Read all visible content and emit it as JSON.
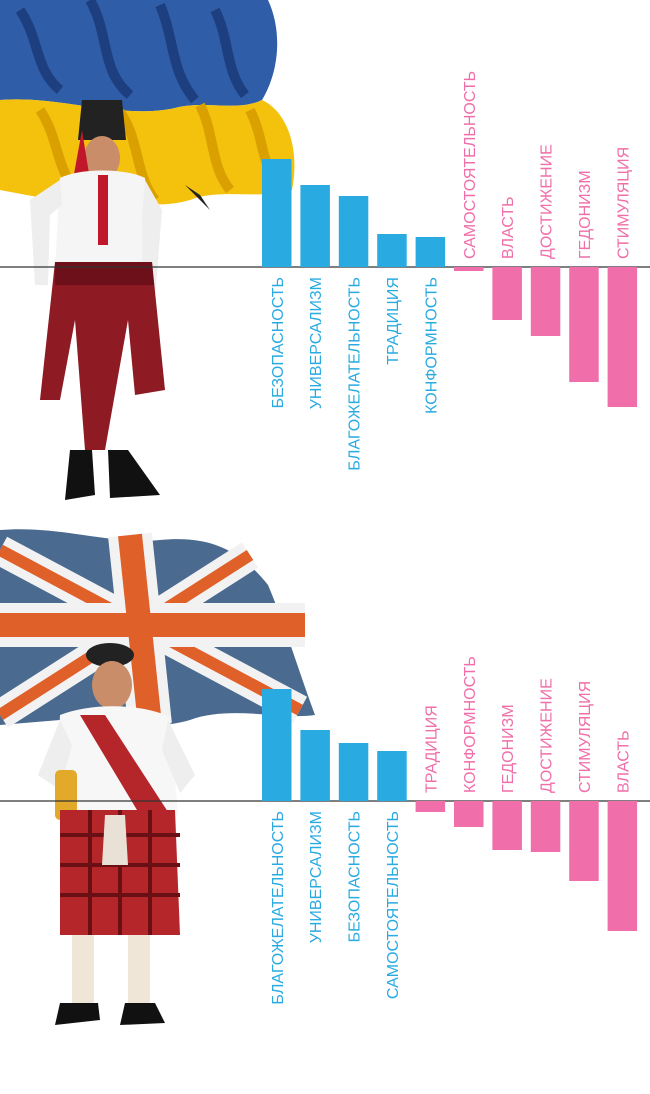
{
  "colors": {
    "positive": "#29abe2",
    "negative": "#f06ea9",
    "axis": "#333333"
  },
  "illustrations": {
    "top": {
      "flag": "ukraine-flag",
      "figure": "cossack-costume-figure"
    },
    "bottom": {
      "flag": "union-jack-flag",
      "figure": "scottish-kilt-figure"
    }
  },
  "chart_data": [
    {
      "type": "bar",
      "orientation": "diverging",
      "bars": [
        {
          "label": "БЕЗОПАСНОСТЬ",
          "value": 108
        },
        {
          "label": "УНИВЕРСАЛИЗМ",
          "value": 82
        },
        {
          "label": "БЛАГОЖЕЛАТЕЛЬНОСТЬ",
          "value": 71
        },
        {
          "label": "ТРАДИЦИЯ",
          "value": 33
        },
        {
          "label": "КОНФОРМНОСТЬ",
          "value": 30
        },
        {
          "label": "САМОСТОЯТЕЛЬНОСТЬ",
          "value": -4
        },
        {
          "label": "ВЛАСТЬ",
          "value": -53
        },
        {
          "label": "ДОСТИЖЕНИЕ",
          "value": -69
        },
        {
          "label": "ГЕДОНИЗМ",
          "value": -115
        },
        {
          "label": "СТИМУЛЯЦИЯ",
          "value": -140
        }
      ]
    },
    {
      "type": "bar",
      "orientation": "diverging",
      "bars": [
        {
          "label": "БЛАГОЖЕЛАТЕЛЬНОСТЬ",
          "value": 112
        },
        {
          "label": "УНИВЕРСАЛИЗМ",
          "value": 71
        },
        {
          "label": "БЕЗОПАСНОСТЬ",
          "value": 58
        },
        {
          "label": "САМОСТОЯТЕЛЬНОСТЬ",
          "value": 50
        },
        {
          "label": "ТРАДИЦИЯ",
          "value": -11
        },
        {
          "label": "КОНФОРМНОСТЬ",
          "value": -26
        },
        {
          "label": "ГЕДОНИЗМ",
          "value": -49
        },
        {
          "label": "ДОСТИЖЕНИЕ",
          "value": -51
        },
        {
          "label": "СТИМУЛЯЦИЯ",
          "value": -80
        },
        {
          "label": "ВЛАСТЬ",
          "value": -130
        }
      ]
    }
  ]
}
